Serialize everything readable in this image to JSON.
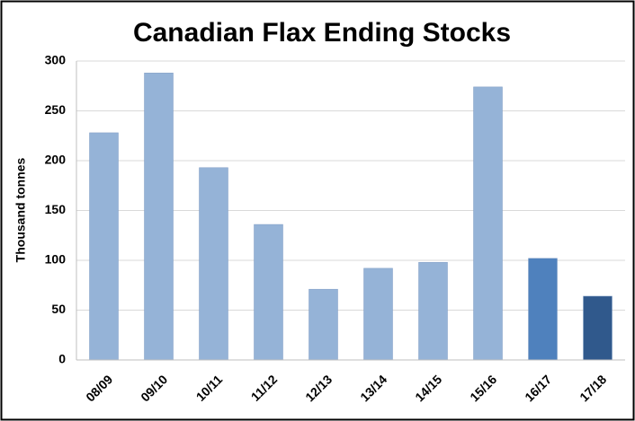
{
  "chart_data": {
    "type": "bar",
    "title": "Canadian Flax Ending Stocks",
    "y_label": "Thousand tonnes",
    "categories": [
      "08/09",
      "09/10",
      "10/11",
      "11/12",
      "12/13",
      "13/14",
      "14/15",
      "15/16",
      "16/17",
      "17/18"
    ],
    "values": [
      228,
      288,
      193,
      136,
      71,
      92,
      98,
      274,
      102,
      64
    ],
    "colors": [
      "#95b3d7",
      "#95b3d7",
      "#95b3d7",
      "#95b3d7",
      "#95b3d7",
      "#95b3d7",
      "#95b3d7",
      "#95b3d7",
      "#4f81bd",
      "#30598c"
    ],
    "ylim": [
      0,
      300
    ],
    "yticks": [
      0,
      50,
      100,
      150,
      200,
      250,
      300
    ],
    "grid": true
  }
}
